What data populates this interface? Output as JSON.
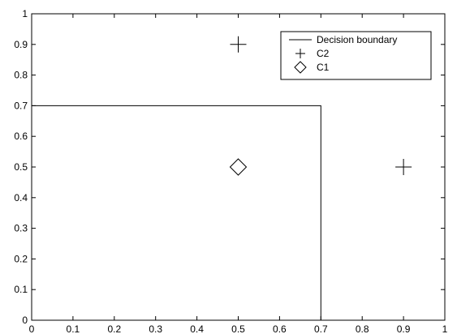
{
  "chart_data": {
    "type": "scatter",
    "xlim": [
      0,
      1
    ],
    "ylim": [
      0,
      1
    ],
    "x_ticks": [
      "0",
      "0.1",
      "0.2",
      "0.3",
      "0.4",
      "0.5",
      "0.6",
      "0.7",
      "0.8",
      "0.9",
      "1"
    ],
    "y_ticks": [
      "0",
      "0.1",
      "0.2",
      "0.3",
      "0.4",
      "0.5",
      "0.6",
      "0.7",
      "0.8",
      "0.9",
      "1"
    ],
    "grid": false,
    "legend_position": "top-right",
    "series": [
      {
        "name": "Decision boundary",
        "kind": "line",
        "points": [
          [
            0,
            0.7
          ],
          [
            0.7,
            0.7
          ],
          [
            0.7,
            0
          ]
        ]
      },
      {
        "name": "C2",
        "kind": "marker",
        "marker": "plus",
        "points": [
          [
            0.5,
            0.9
          ],
          [
            0.9,
            0.5
          ]
        ]
      },
      {
        "name": "C1",
        "kind": "marker",
        "marker": "diamond",
        "points": [
          [
            0.5,
            0.5
          ]
        ]
      }
    ]
  }
}
